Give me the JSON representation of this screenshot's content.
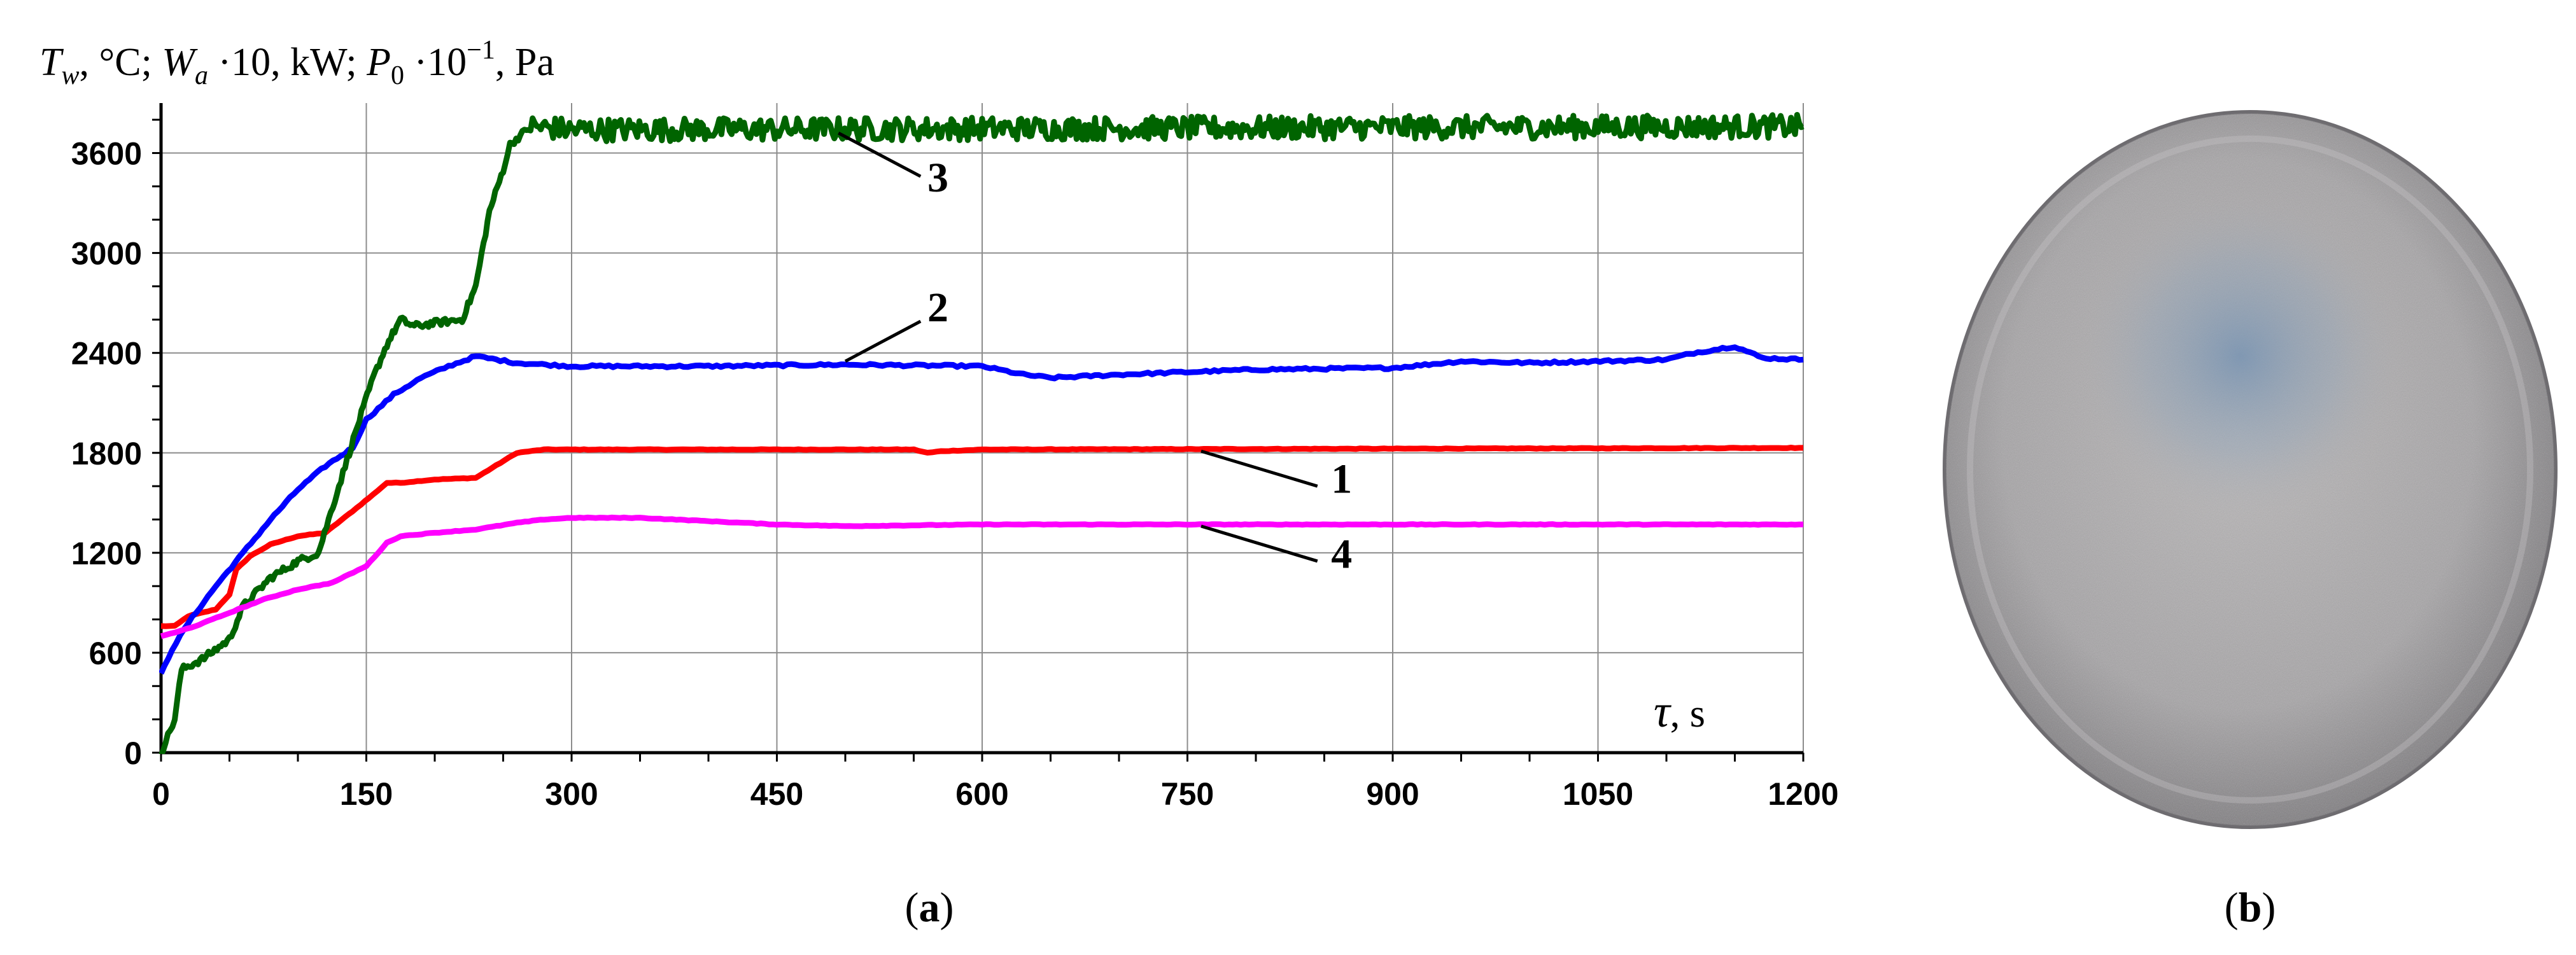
{
  "figure": {
    "panel_a": {
      "open": "(",
      "letter": "a",
      "close": ")"
    },
    "panel_b": {
      "open": "(",
      "letter": "b",
      "close": ")"
    },
    "photo_icon": "specimen-disk-photo"
  },
  "chart_data": {
    "type": "line",
    "ylabel": {
      "t_sym": "T",
      "t_sub": "w",
      "t_unit": ", °C; ",
      "w_sym": "W",
      "w_sub": "a",
      "w_unit": " ·10, kW; ",
      "p_sym": "P",
      "p_sub": "0",
      "p_unit": " ·10",
      "p_sup": "−1",
      "p_tail": ", Pa"
    },
    "xlabel": {
      "sym": "τ",
      "unit": ", s"
    },
    "xlim": [
      0,
      1200
    ],
    "ylim": [
      0,
      3900
    ],
    "xticks": [
      0,
      150,
      300,
      450,
      600,
      750,
      900,
      1050,
      1200
    ],
    "yticks": [
      0,
      600,
      1200,
      1800,
      2400,
      3000,
      3600
    ],
    "grid": true,
    "curve_labels": [
      {
        "text": "1",
        "series": 1
      },
      {
        "text": "2",
        "series": 2
      },
      {
        "text": "3",
        "series": 3
      },
      {
        "text": "4",
        "series": 4
      }
    ],
    "series": [
      {
        "name": "1",
        "color": "#ff0000",
        "x": [
          0,
          10,
          20,
          40,
          50,
          55,
          65,
          80,
          100,
          120,
          140,
          155,
          165,
          175,
          200,
          230,
          260,
          280,
          300,
          550,
          560,
          570,
          600,
          1200
        ],
        "y": [
          760,
          760,
          820,
          860,
          950,
          1100,
          1180,
          1250,
          1300,
          1320,
          1450,
          1550,
          1620,
          1620,
          1640,
          1650,
          1800,
          1820,
          1820,
          1820,
          1800,
          1810,
          1820,
          1830
        ]
      },
      {
        "name": "2",
        "color": "#0000ff",
        "x": [
          0,
          8,
          20,
          40,
          60,
          80,
          100,
          120,
          140,
          150,
          170,
          190,
          210,
          230,
          260,
          300,
          400,
          500,
          600,
          630,
          650,
          700,
          800,
          900,
          950,
          1000,
          1100,
          1120,
          1150,
          1170,
          1200
        ],
        "y": [
          470,
          620,
          780,
          1000,
          1200,
          1400,
          1580,
          1720,
          1830,
          2000,
          2150,
          2250,
          2320,
          2380,
          2340,
          2320,
          2320,
          2330,
          2320,
          2270,
          2250,
          2270,
          2300,
          2310,
          2350,
          2340,
          2360,
          2400,
          2440,
          2370,
          2360
        ]
      },
      {
        "name": "3",
        "color": "#006400",
        "x": [
          0,
          5,
          10,
          15,
          30,
          50,
          60,
          80,
          100,
          115,
          130,
          145,
          155,
          165,
          175,
          185,
          200,
          220,
          230,
          240,
          250,
          255,
          270,
          300,
          1200
        ],
        "y": [
          0,
          100,
          200,
          500,
          560,
          680,
          880,
          1050,
          1150,
          1200,
          1600,
          2000,
          2250,
          2450,
          2600,
          2560,
          2580,
          2600,
          2800,
          3250,
          3500,
          3650,
          3760,
          3740,
          3760
        ],
        "noise_from_x": 270,
        "noise_amplitude": 70
      },
      {
        "name": "4",
        "color": "#ff00ff",
        "x": [
          0,
          10,
          25,
          50,
          75,
          100,
          125,
          150,
          165,
          175,
          200,
          230,
          260,
          280,
          300,
          350,
          400,
          450,
          500,
          600,
          1200
        ],
        "y": [
          700,
          720,
          760,
          840,
          920,
          980,
          1020,
          1120,
          1260,
          1300,
          1320,
          1340,
          1380,
          1400,
          1410,
          1410,
          1390,
          1370,
          1360,
          1370,
          1370
        ]
      }
    ]
  }
}
